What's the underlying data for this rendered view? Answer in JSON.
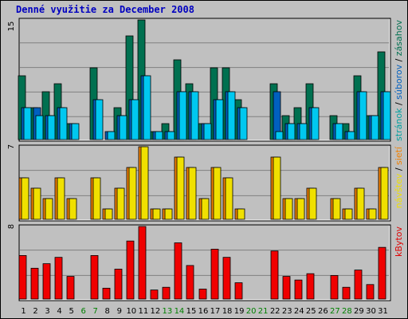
{
  "chart_data": {
    "type": "bar",
    "title": "Denné využitie za December 2008",
    "categories": [
      "1",
      "2",
      "3",
      "4",
      "5",
      "6",
      "7",
      "8",
      "9",
      "10",
      "11",
      "12",
      "13",
      "14",
      "15",
      "16",
      "17",
      "18",
      "19",
      "20",
      "21",
      "22",
      "23",
      "24",
      "25",
      "26",
      "27",
      "28",
      "29",
      "30",
      "31"
    ],
    "weekend_days": [
      "6",
      "7",
      "13",
      "14",
      "20",
      "21",
      "27",
      "28"
    ],
    "colors": {
      "background": "#c0c0c0",
      "frame": "#000000",
      "gridline": "#808080",
      "weekday_label": "#000000",
      "weekend_label": "#008000",
      "title": "#0000c0"
    },
    "panels": [
      {
        "ymax": 15,
        "y_tick_label": "15",
        "side_labels": [
          {
            "text": "stránok",
            "color": "#00a0a0"
          },
          {
            "text": " / ",
            "color": "#000000"
          },
          {
            "text": "súborov",
            "color": "#0060c0"
          },
          {
            "text": " / ",
            "color": "#000000"
          },
          {
            "text": "zásahov",
            "color": "#007050"
          }
        ],
        "series": [
          {
            "name": "zásahov",
            "color": "#007050",
            "values": [
              8,
              4,
              6,
              7,
              2,
              0,
              9,
              0,
              4,
              13,
              15,
              1,
              2,
              10,
              7,
              2,
              9,
              9,
              5,
              0,
              0,
              7,
              3,
              4,
              7,
              0,
              3,
              2,
              8,
              3,
              11
            ]
          },
          {
            "name": "súborov",
            "color": "#0060c0",
            "values": [
              4,
              4,
              3,
              4,
              2,
              0,
              5,
              1,
              3,
              5,
              8,
              1,
              1,
              6,
              6,
              2,
              5,
              6,
              4,
              0,
              0,
              6,
              2,
              2,
              4,
              0,
              2,
              1,
              6,
              3,
              6
            ]
          },
          {
            "name": "stránok",
            "color": "#00c8f0",
            "values": [
              4,
              3,
              3,
              4,
              2,
              0,
              5,
              1,
              3,
              5,
              8,
              1,
              1,
              6,
              6,
              2,
              5,
              6,
              4,
              0,
              0,
              1,
              2,
              2,
              4,
              0,
              2,
              1,
              6,
              3,
              6
            ]
          }
        ]
      },
      {
        "ymax": 7,
        "y_tick_label": "7",
        "side_labels": [
          {
            "text": "návštev",
            "color": "#f0e000"
          },
          {
            "text": " / ",
            "color": "#000000"
          },
          {
            "text": "sietí",
            "color": "#f08000"
          }
        ],
        "series": [
          {
            "name": "sietí",
            "color": "#f08000",
            "values": [
              4,
              3,
              2,
              4,
              2,
              0,
              4,
              1,
              3,
              5,
              7,
              1,
              1,
              6,
              5,
              2,
              5,
              4,
              1,
              0,
              0,
              6,
              2,
              2,
              3,
              0,
              2,
              1,
              3,
              1,
              5
            ]
          },
          {
            "name": "návštev",
            "color": "#f0e000",
            "values": [
              4,
              3,
              2,
              4,
              2,
              0,
              4,
              1,
              3,
              5,
              7,
              1,
              1,
              6,
              5,
              2,
              5,
              4,
              1,
              0,
              0,
              6,
              2,
              2,
              3,
              0,
              2,
              1,
              3,
              1,
              5
            ]
          }
        ]
      },
      {
        "ymax": 8,
        "y_tick_label": "8",
        "side_labels": [
          {
            "text": "kBytov",
            "color": "#e00000"
          }
        ],
        "series": [
          {
            "name": "kBytov",
            "color": "#f00000",
            "values": [
              4.8,
              3.4,
              3.9,
              4.6,
              2.5,
              0,
              4.8,
              1.2,
              3.3,
              6.4,
              8,
              1,
              1.3,
              6.2,
              3.7,
              1.1,
              5.5,
              4.6,
              1.8,
              0,
              0,
              5.3,
              2.5,
              2.1,
              2.8,
              0,
              2.6,
              1.3,
              3.2,
              1.6,
              5.7
            ]
          }
        ]
      }
    ],
    "grid": true
  }
}
